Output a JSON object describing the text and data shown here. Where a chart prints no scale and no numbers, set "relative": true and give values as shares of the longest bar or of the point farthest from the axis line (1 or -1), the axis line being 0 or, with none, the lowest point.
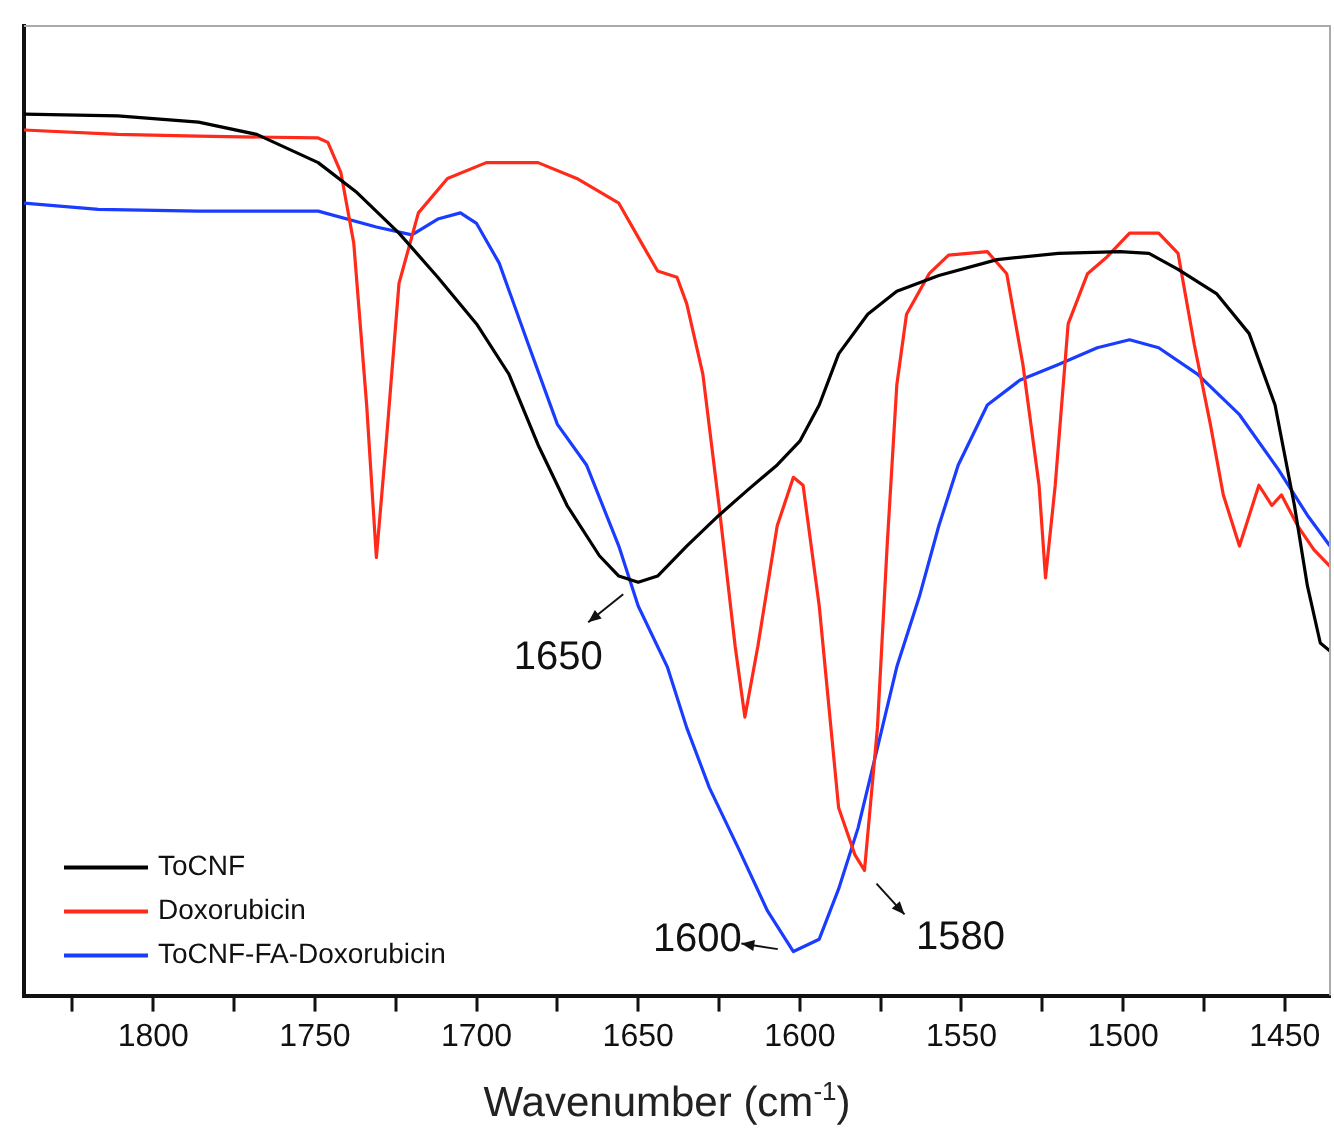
{
  "chart_data": {
    "type": "line",
    "relative": true,
    "xlabel": "Wavenumber (cm$^{-1}$)",
    "xlim": [
      1840,
      1436
    ],
    "xticks": [
      {
        "value": 1825,
        "label": null
      },
      1800,
      {
        "value": 1775,
        "label": null
      },
      1750,
      {
        "value": 1725,
        "label": null
      },
      1700,
      {
        "value": 1675,
        "label": null
      },
      1650,
      {
        "value": 1625,
        "label": null
      },
      1600,
      {
        "value": 1575,
        "label": null
      },
      1550,
      {
        "value": 1525,
        "label": null
      },
      1500,
      {
        "value": 1475,
        "label": null
      },
      1450
    ],
    "legend": "bottom left",
    "annotations": [
      {
        "text": "1650",
        "x": 1650,
        "y": 0.469
      },
      {
        "text": "1600",
        "x": 1602,
        "y": 0.05
      },
      {
        "text": "1580",
        "x": 1580,
        "y": 0.142
      }
    ],
    "series": [
      {
        "name": "ToCNF",
        "color": "#000000",
        "x": [
          1840,
          1811,
          1786,
          1768,
          1749,
          1737,
          1724,
          1712,
          1700,
          1690,
          1681,
          1672,
          1662,
          1656,
          1650,
          1644,
          1635,
          1625,
          1616,
          1607,
          1600,
          1594,
          1588,
          1579,
          1570,
          1557,
          1539,
          1520,
          1501,
          1492,
          1483,
          1471,
          1461,
          1453,
          1447,
          1443,
          1439,
          1436
        ],
        "values": [
          1.0,
          0.998,
          0.991,
          0.977,
          0.945,
          0.911,
          0.865,
          0.815,
          0.762,
          0.705,
          0.625,
          0.556,
          0.499,
          0.476,
          0.469,
          0.476,
          0.51,
          0.545,
          0.574,
          0.602,
          0.629,
          0.67,
          0.728,
          0.773,
          0.799,
          0.817,
          0.835,
          0.842,
          0.844,
          0.842,
          0.824,
          0.796,
          0.751,
          0.67,
          0.556,
          0.465,
          0.4,
          0.391
        ]
      },
      {
        "name": "Doxorubicin",
        "color": "#ff2a1a",
        "x": [
          1840,
          1811,
          1786,
          1749,
          1746,
          1742,
          1738,
          1734,
          1731,
          1728,
          1724,
          1718,
          1709,
          1697,
          1681,
          1669,
          1656,
          1649,
          1644,
          1638,
          1635,
          1630,
          1625,
          1620,
          1617,
          1613,
          1607,
          1602,
          1599,
          1594,
          1588,
          1583,
          1580,
          1576,
          1573,
          1570,
          1567,
          1560,
          1554,
          1542,
          1536,
          1531,
          1526,
          1524,
          1521,
          1517,
          1511,
          1505,
          1498,
          1489,
          1483,
          1478,
          1473,
          1469,
          1464,
          1458,
          1454,
          1451,
          1446,
          1441,
          1436
        ],
        "values": [
          0.982,
          0.977,
          0.975,
          0.973,
          0.968,
          0.934,
          0.854,
          0.67,
          0.497,
          0.625,
          0.808,
          0.888,
          0.927,
          0.945,
          0.945,
          0.927,
          0.899,
          0.854,
          0.822,
          0.815,
          0.785,
          0.705,
          0.556,
          0.396,
          0.316,
          0.396,
          0.533,
          0.588,
          0.579,
          0.442,
          0.213,
          0.16,
          0.142,
          0.304,
          0.51,
          0.693,
          0.773,
          0.819,
          0.84,
          0.844,
          0.819,
          0.716,
          0.579,
          0.474,
          0.579,
          0.762,
          0.819,
          0.838,
          0.865,
          0.865,
          0.842,
          0.739,
          0.648,
          0.568,
          0.51,
          0.579,
          0.556,
          0.568,
          0.533,
          0.506,
          0.487
        ]
      },
      {
        "name": "ToCNF-FA-Doxorubicin",
        "color": "#1a3cff",
        "x": [
          1840,
          1817,
          1786,
          1749,
          1731,
          1720,
          1712,
          1705,
          1700,
          1693,
          1684,
          1675,
          1666,
          1656,
          1650,
          1641,
          1635,
          1628,
          1619,
          1610,
          1602,
          1594,
          1588,
          1582,
          1576,
          1570,
          1563,
          1557,
          1551,
          1542,
          1532,
          1520,
          1508,
          1498,
          1489,
          1477,
          1464,
          1452,
          1443,
          1436
        ],
        "values": [
          0.899,
          0.892,
          0.89,
          0.89,
          0.872,
          0.863,
          0.881,
          0.888,
          0.876,
          0.831,
          0.739,
          0.648,
          0.602,
          0.51,
          0.442,
          0.373,
          0.304,
          0.236,
          0.167,
          0.096,
          0.05,
          0.064,
          0.121,
          0.19,
          0.281,
          0.373,
          0.453,
          0.533,
          0.602,
          0.67,
          0.698,
          0.716,
          0.735,
          0.744,
          0.735,
          0.705,
          0.659,
          0.597,
          0.545,
          0.51
        ]
      }
    ]
  }
}
